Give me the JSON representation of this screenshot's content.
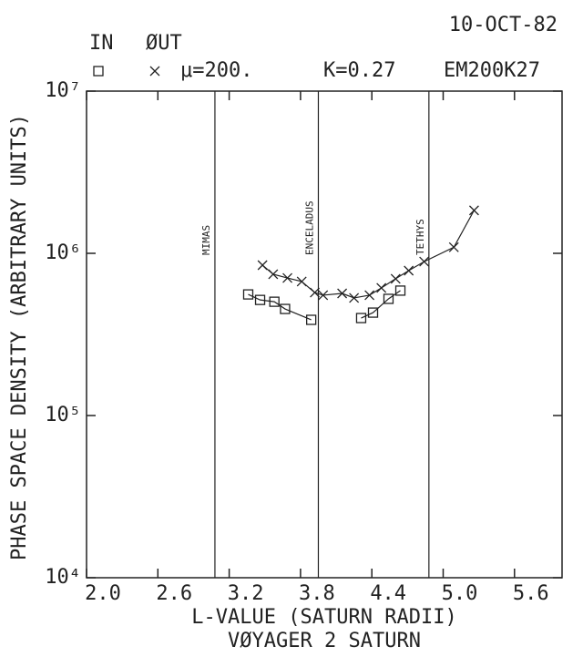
{
  "chart_data": {
    "type": "line",
    "date": "10-OCT-82",
    "params": [
      "μ=200.",
      "K=0.27",
      "EM200K27"
    ],
    "title": "VØYAGER 2 SATURN",
    "xlabel": "L-VALUE (SATURN RADII)",
    "ylabel": "PHASE SPACE DENSITY (ARBITRARY UNITS)",
    "xlim": [
      2.0,
      6.0
    ],
    "xticks": [
      {
        "value": 2.0,
        "label": "2.0"
      },
      2.6,
      3.2,
      3.8,
      4.4,
      {
        "value": 5.0,
        "label": "5.0"
      },
      5.6
    ],
    "ylim": [
      10000,
      10000000
    ],
    "yticks": [
      {
        "value": 10000,
        "label": "10⁴"
      },
      {
        "value": 100000,
        "label": "10⁵"
      },
      {
        "value": 1000000,
        "label": "10⁶"
      },
      {
        "value": 10000000,
        "label": "10⁷"
      }
    ],
    "log_y": true,
    "color": "#222222",
    "annotations": [
      {
        "text": "MIMAS",
        "x": 3.08
      },
      {
        "text": "ENCELADUS",
        "x": 3.95
      },
      {
        "text": "TETHYS",
        "x": 4.88
      }
    ],
    "series": [
      {
        "name": "IN",
        "marker": "square",
        "x": [
          3.36,
          3.46,
          3.58,
          3.67,
          3.89,
          null,
          4.31,
          4.41,
          4.54,
          4.64
        ],
        "values": [
          558000,
          516000,
          503000,
          454000,
          389000,
          null,
          399000,
          431000,
          524000,
          589000
        ]
      },
      {
        "name": "ØUT",
        "marker": "cross",
        "x": [
          3.48,
          3.57,
          3.69,
          3.81,
          3.92,
          3.99,
          4.15,
          4.25,
          4.38,
          4.48,
          4.6,
          4.71,
          4.84,
          5.09,
          5.26
        ],
        "values": [
          845000,
          743000,
          705000,
          670000,
          573000,
          552000,
          566000,
          531000,
          552000,
          612000,
          697000,
          782000,
          889000,
          1090000,
          1840000
        ]
      }
    ]
  }
}
